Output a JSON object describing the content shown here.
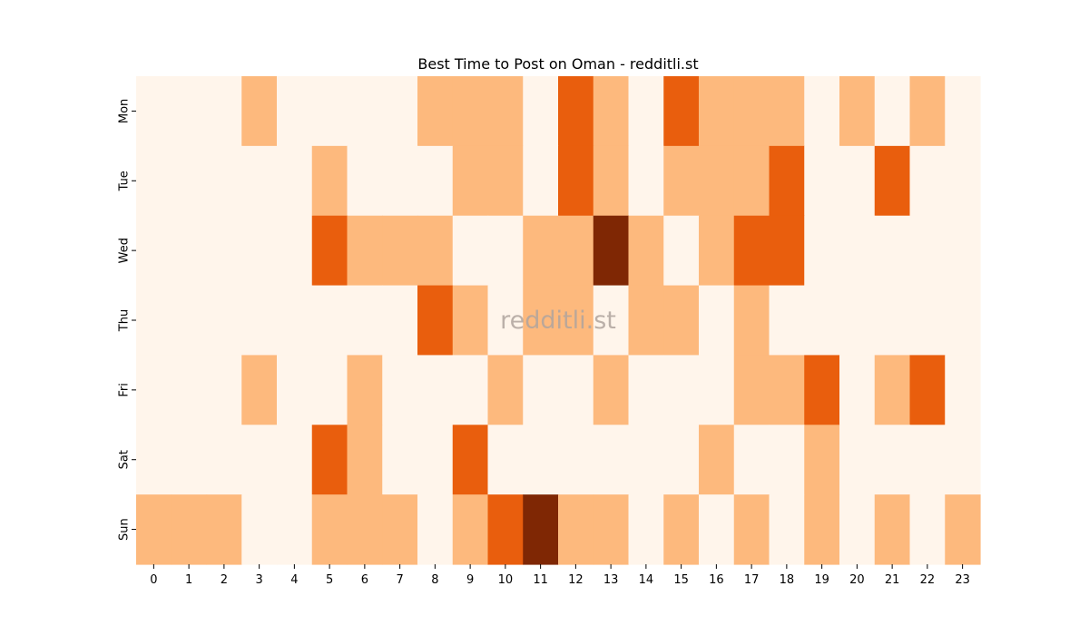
{
  "chart_data": {
    "type": "heatmap",
    "title": "Best Time to Post on Oman - redditli.st",
    "watermark": "redditli.st",
    "xlabel": "",
    "ylabel": "",
    "x_categories": [
      "0",
      "1",
      "2",
      "3",
      "4",
      "5",
      "6",
      "7",
      "8",
      "9",
      "10",
      "11",
      "12",
      "13",
      "14",
      "15",
      "16",
      "17",
      "18",
      "19",
      "20",
      "21",
      "22",
      "23"
    ],
    "y_categories": [
      "Mon",
      "Tue",
      "Wed",
      "Thu",
      "Fri",
      "Sat",
      "Sun"
    ],
    "values": [
      [
        0,
        0,
        0,
        1,
        0,
        0,
        0,
        0,
        1,
        1,
        1,
        0,
        2,
        1,
        0,
        2,
        1,
        1,
        1,
        0,
        1,
        0,
        1,
        0
      ],
      [
        0,
        0,
        0,
        0,
        0,
        1,
        0,
        0,
        0,
        1,
        1,
        0,
        2,
        1,
        0,
        1,
        1,
        1,
        2,
        0,
        0,
        2,
        0,
        0
      ],
      [
        0,
        0,
        0,
        0,
        0,
        2,
        1,
        1,
        1,
        0,
        0,
        1,
        1,
        3,
        1,
        0,
        1,
        2,
        2,
        0,
        0,
        0,
        0,
        0
      ],
      [
        0,
        0,
        0,
        0,
        0,
        0,
        0,
        0,
        2,
        1,
        0,
        1,
        1,
        0,
        1,
        1,
        0,
        1,
        0,
        0,
        0,
        0,
        0,
        0
      ],
      [
        0,
        0,
        0,
        1,
        0,
        0,
        1,
        0,
        0,
        0,
        1,
        0,
        0,
        1,
        0,
        0,
        0,
        1,
        1,
        2,
        0,
        1,
        2,
        0
      ],
      [
        0,
        0,
        0,
        0,
        0,
        2,
        1,
        0,
        0,
        2,
        0,
        0,
        0,
        0,
        0,
        0,
        1,
        0,
        0,
        1,
        0,
        0,
        0,
        0
      ],
      [
        1,
        1,
        1,
        0,
        0,
        1,
        1,
        1,
        0,
        1,
        2,
        3,
        1,
        1,
        0,
        1,
        0,
        1,
        0,
        1,
        0,
        1,
        0,
        1
      ]
    ],
    "value_range": [
      0,
      3
    ],
    "colormap": "Oranges",
    "level_colors": [
      "#fff5eb",
      "#fdb97d",
      "#e95e0d",
      "#7f2704"
    ],
    "colorbar": false,
    "grid": false
  }
}
